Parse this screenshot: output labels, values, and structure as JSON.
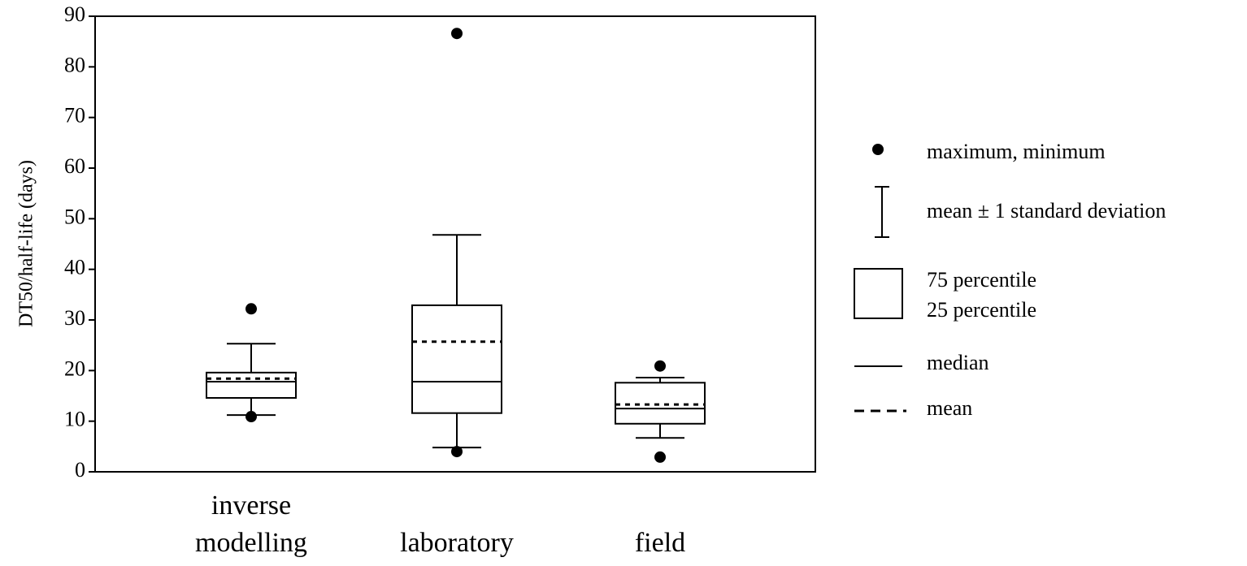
{
  "chart_data": {
    "type": "box",
    "y_label": "DT50/half-life (days)",
    "categories": [
      "inverse modelling",
      "laboratory",
      "field"
    ],
    "max": [
      32.2,
      86.6,
      20.9
    ],
    "min": [
      10.9,
      4.0,
      2.9
    ],
    "whisker_high": [
      25.3,
      46.8,
      18.6
    ],
    "whisker_low": [
      11.2,
      4.8,
      6.7
    ],
    "q3": [
      19.6,
      32.9,
      17.6
    ],
    "q1": [
      14.6,
      11.6,
      9.5
    ],
    "median": [
      17.8,
      17.8,
      12.5
    ],
    "mean": [
      18.4,
      25.7,
      13.3
    ],
    "ylim": [
      0,
      90
    ],
    "yticks": [
      0,
      10,
      20,
      30,
      40,
      50,
      60,
      70,
      80,
      90
    ],
    "color": "#000000",
    "legend": {
      "extremes": "maximum, minimum",
      "whisker": "mean ± 1 standard deviation",
      "box_high": "75 percentile",
      "box_low": "25 percentile",
      "median": "median",
      "mean": "mean"
    }
  }
}
